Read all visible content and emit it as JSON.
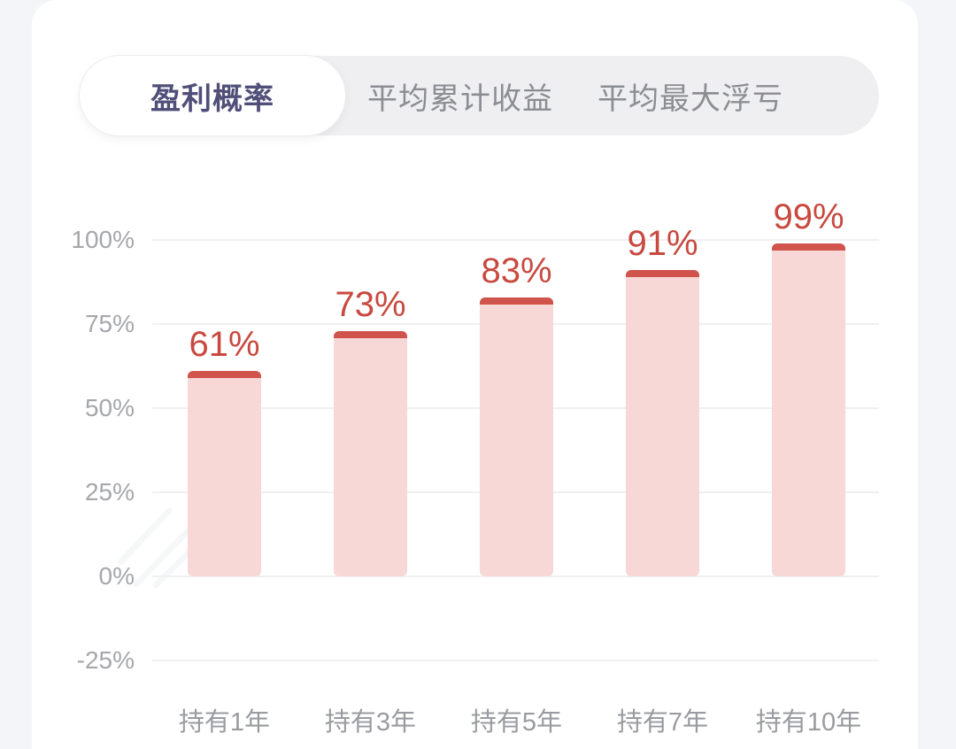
{
  "colors": {
    "page_background": "#f4f5f9",
    "card_background": "#ffffff",
    "tabbar_background": "#efeff1",
    "tab_selected_text": "#504f79",
    "tab_unselected_text": "#8b8d92",
    "bar_body": "#f7d8d6",
    "bar_cap": "#d0544b",
    "bar_value_text": "#c8493f",
    "axis_label_text": "#a6a7ac",
    "gridline": "#f0f0f2"
  },
  "tabs": [
    {
      "label": "盈利概率",
      "selected": true
    },
    {
      "label": "平均累计收益",
      "selected": false
    },
    {
      "label": "平均最大浮亏",
      "selected": false
    }
  ],
  "chart_data": {
    "type": "bar",
    "title": "",
    "xlabel": "",
    "ylabel": "",
    "categories": [
      "持有1年",
      "持有3年",
      "持有5年",
      "持有7年",
      "持有10年"
    ],
    "values": [
      61,
      73,
      83,
      91,
      99
    ],
    "value_labels": [
      "61%",
      "73%",
      "83%",
      "91%",
      "99%"
    ],
    "y_ticks": [
      "100%",
      "75%",
      "50%",
      "25%",
      "0%",
      "-25%"
    ],
    "y_tick_values": [
      100,
      75,
      50,
      25,
      0,
      -25
    ],
    "ylim": [
      -25,
      110
    ],
    "grid": true,
    "legend": false
  }
}
